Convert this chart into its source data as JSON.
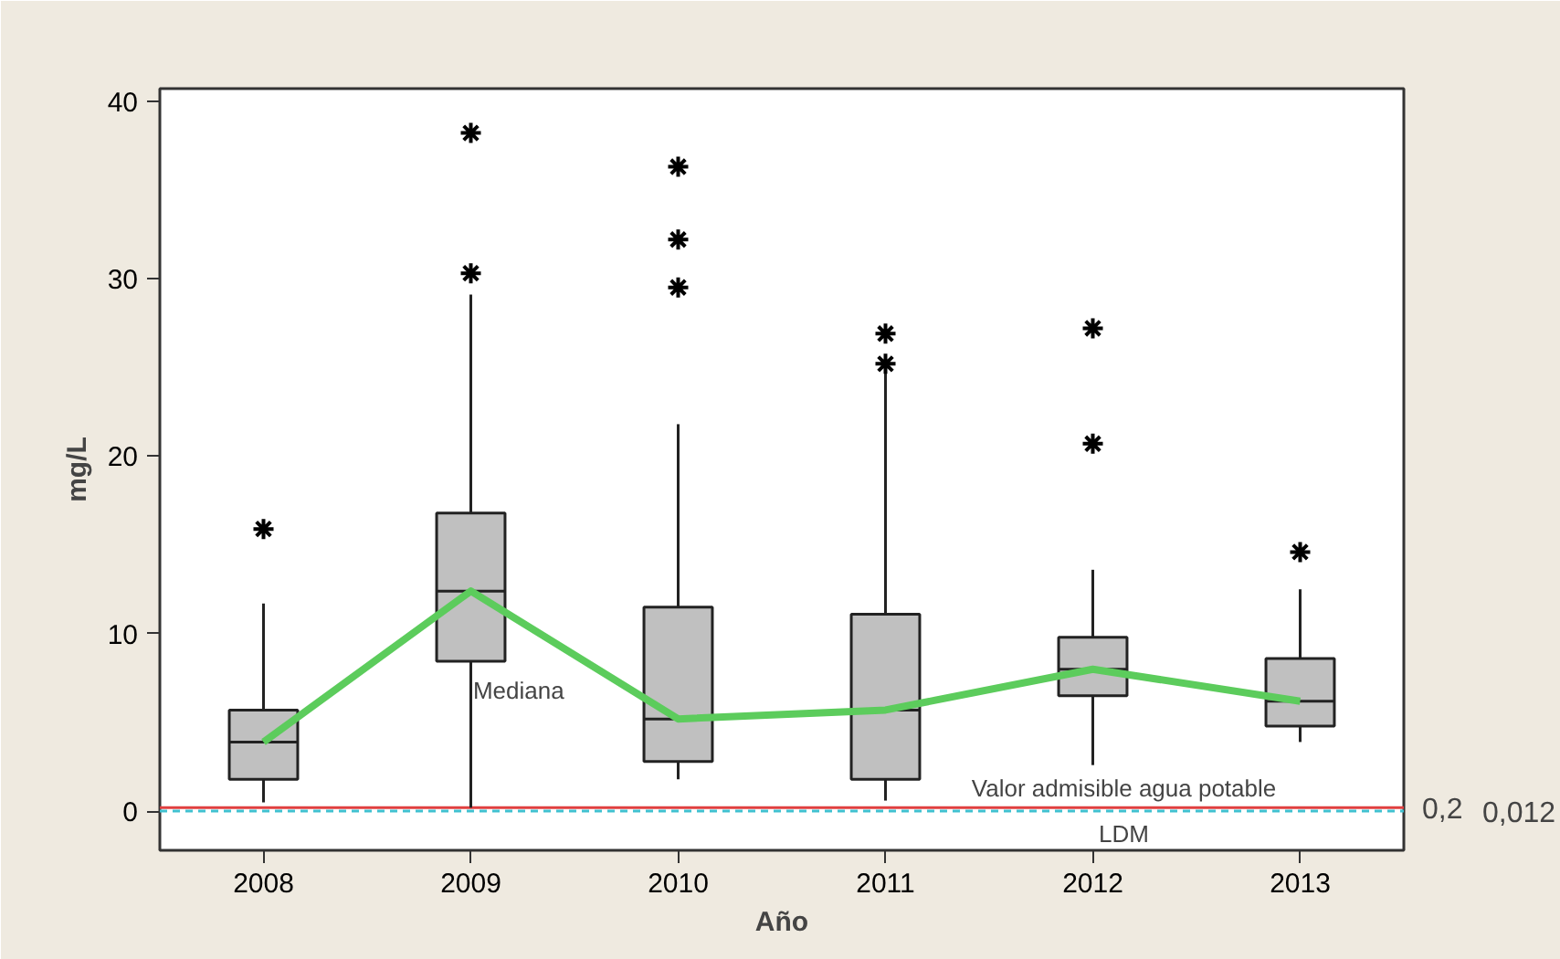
{
  "chart_data": {
    "type": "box",
    "xlabel": "Año",
    "ylabel": "mg/L",
    "categories": [
      "2008",
      "2009",
      "2010",
      "2011",
      "2012",
      "2013"
    ],
    "boxes": [
      {
        "low": 0.5,
        "q1": 1.8,
        "median": 3.9,
        "q3": 5.7,
        "high": 11.7,
        "outliers": [
          15.9
        ]
      },
      {
        "low": 0.2,
        "q1": 8.45,
        "median": 12.4,
        "q3": 16.8,
        "high": 29.1,
        "outliers": [
          30.3,
          38.2
        ]
      },
      {
        "low": 1.8,
        "q1": 2.8,
        "median": 5.2,
        "q3": 11.5,
        "high": 21.8,
        "outliers": [
          29.5,
          32.2,
          36.3
        ]
      },
      {
        "low": 0.6,
        "q1": 1.8,
        "median": 5.7,
        "q3": 11.1,
        "high": 24.7,
        "outliers": [
          25.2,
          26.9
        ]
      },
      {
        "low": 2.6,
        "q1": 6.5,
        "median": 8.0,
        "q3": 9.8,
        "high": 13.6,
        "outliers": [
          20.7,
          27.2
        ]
      },
      {
        "low": 3.9,
        "q1": 4.8,
        "median": 6.2,
        "q3": 8.6,
        "high": 12.5,
        "outliers": [
          14.6
        ]
      }
    ],
    "series": [
      {
        "type": "line",
        "name": "Mediana",
        "color": "#5ccc5c",
        "values": [
          3.9,
          12.4,
          5.2,
          5.7,
          8.0,
          6.2
        ]
      }
    ],
    "ylim": [
      -2.2,
      40.7
    ],
    "yticks": [
      0,
      10,
      20,
      30,
      40
    ],
    "grid": false,
    "legend": false,
    "ref_lines": [
      {
        "axis": "y",
        "value": 0.2,
        "label": "0,2",
        "color": "#e04040",
        "line_style": "solid"
      },
      {
        "axis": "y",
        "value": 0.012,
        "label": "0,012",
        "color": "#40c0d0",
        "line_style": "dashed"
      }
    ],
    "annotations": [
      "Valor admisible agua potable",
      "LDM"
    ]
  }
}
